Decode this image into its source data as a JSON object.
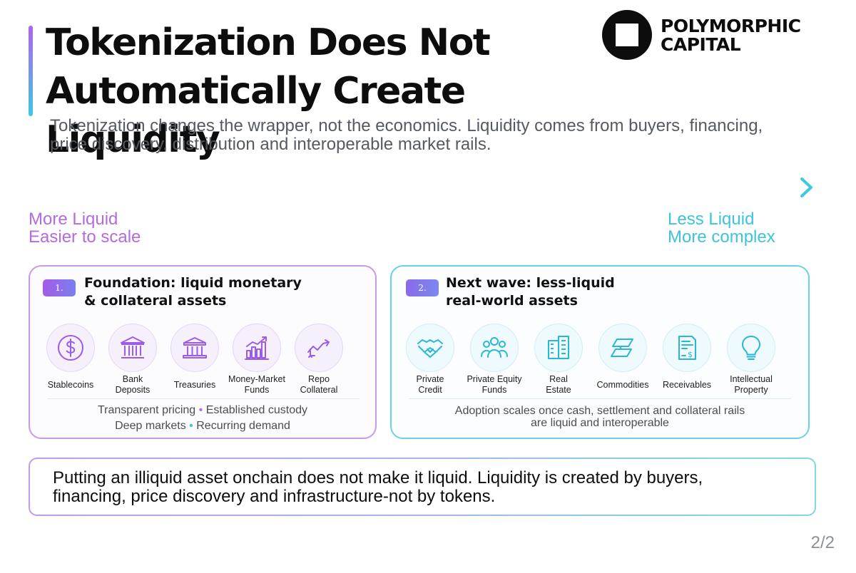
{
  "header": {
    "title_line1": "Tokenization Does Not",
    "title_line2": "Automatically Create Liquidity",
    "subtitle_line1": "Tokenization changes the wrapper, not the economics. Liquidity comes from buyers, financing,",
    "subtitle_line2": "price discovery, distribution and interoperable market rails."
  },
  "brand": {
    "name_line1": "POLYMORPHIC",
    "name_line2": "CAPITAL"
  },
  "spectrum": {
    "left_line1": "More Liquid",
    "left_line2": "Easier to scale",
    "right_line1": "Less Liquid",
    "right_line2": "More complex",
    "gradient_start": "#b064e8",
    "gradient_end": "#3fc7e0"
  },
  "cards": [
    {
      "badge": "1.",
      "title_line1": "Foundation: liquid monetary",
      "title_line2": "& collateral assets",
      "accent": "#9b5de5",
      "items": [
        {
          "icon": "dollar-coin-icon",
          "label": "Stablecoins"
        },
        {
          "icon": "bank-icon",
          "label": "Bank\nDeposits"
        },
        {
          "icon": "treasury-building-icon",
          "label": "Treasuries"
        },
        {
          "icon": "bar-chart-icon",
          "label": "Money-Market\nFunds"
        },
        {
          "icon": "swap-trend-icon",
          "label": "Repo\nCollateral"
        }
      ],
      "footer_a1": "Transparent pricing",
      "footer_sep": "•",
      "footer_a2": "Established custody",
      "footer_b1": "Deep markets",
      "footer_b2": "Recurring demand"
    },
    {
      "badge": "2.",
      "title_line1": "Next wave: less-liquid",
      "title_line2": "real-world assets",
      "accent": "#2bb7d3",
      "items": [
        {
          "icon": "handshake-icon",
          "label": "Private\nCredit"
        },
        {
          "icon": "people-group-icon",
          "label": "Private Equity\nFunds"
        },
        {
          "icon": "office-building-icon",
          "label": "Real\nEstate"
        },
        {
          "icon": "commodity-bars-icon",
          "label": "Commodities"
        },
        {
          "icon": "invoice-icon",
          "label": "Receivables"
        },
        {
          "icon": "lightbulb-icon",
          "label": "Intellectual\nProperty"
        }
      ],
      "footer_line1": "Adoption scales once cash, settlement and collateral rails",
      "footer_line2": "are liquid and interoperable"
    }
  ],
  "callout": {
    "line1": "Putting an illiquid asset onchain does not make it liquid. Liquidity is created by buyers,",
    "line2": "financing, price discovery and infrastructure-not by tokens."
  },
  "page_number": "2/2"
}
